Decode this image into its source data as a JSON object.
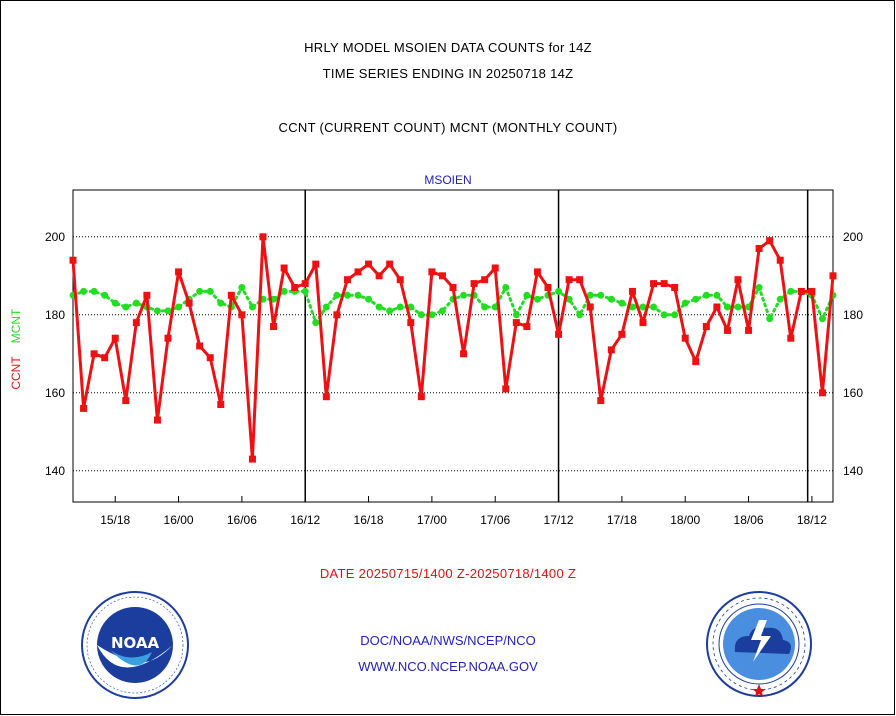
{
  "header": {
    "title_line1": "HRLY MODEL MSOIEN DATA COUNTS for 14Z",
    "title_line2": "TIME SERIES ENDING IN 20250718 14Z",
    "subtitle": "CCNT (CURRENT COUNT) MCNT (MONTHLY COUNT)"
  },
  "footer": {
    "date_range": "DATE 20250715/1400 Z-20250718/1400 Z",
    "link1": "DOC/NOAA/NWS/NCEP/NCO",
    "link2": "WWW.NCO.NCEP.NOAA.GOV"
  },
  "logos": {
    "left": "noaa-logo",
    "right": "nws-logo"
  },
  "colors": {
    "ccnt": "#ee1111",
    "mcnt": "#22dd22",
    "station": "#2222bb"
  },
  "chart_data": {
    "type": "line",
    "title": "MSOIEN",
    "ylabel_ccnt": "CCNT",
    "ylabel_mcnt": "MCNT",
    "ylim": [
      132,
      212
    ],
    "yticks": [
      140,
      160,
      180,
      200
    ],
    "xlim": [
      0,
      90
    ],
    "xticks": [
      {
        "x": 5,
        "label": "15/18"
      },
      {
        "x": 12.5,
        "label": "16/00"
      },
      {
        "x": 20,
        "label": "16/06"
      },
      {
        "x": 27.5,
        "label": "16/12"
      },
      {
        "x": 35,
        "label": "16/18"
      },
      {
        "x": 42.5,
        "label": "17/00"
      },
      {
        "x": 50,
        "label": "17/06"
      },
      {
        "x": 57.5,
        "label": "17/12"
      },
      {
        "x": 65,
        "label": "17/18"
      },
      {
        "x": 72.5,
        "label": "18/00"
      },
      {
        "x": 80,
        "label": "18/06"
      },
      {
        "x": 87.5,
        "label": "18/12"
      }
    ],
    "day_boundaries": [
      27.5,
      57.5,
      87.0
    ],
    "grid": true,
    "series": [
      {
        "name": "CCNT",
        "values": [
          194,
          156,
          170,
          169,
          174,
          158,
          178,
          185,
          153,
          174,
          191,
          183,
          172,
          169,
          157,
          185,
          180,
          143,
          200,
          177,
          192,
          187,
          188,
          193,
          159,
          180,
          189,
          191,
          193,
          190,
          193,
          189,
          178,
          159,
          191,
          190,
          187,
          170,
          188,
          189,
          192,
          161,
          178,
          177,
          191,
          187,
          175,
          189,
          189,
          182,
          158,
          171,
          175,
          186,
          178,
          188,
          188,
          187,
          174,
          168,
          177,
          182,
          176,
          189,
          176,
          197,
          199,
          194,
          174,
          186,
          186,
          160,
          190
        ]
      },
      {
        "name": "MCNT",
        "values": [
          185,
          186,
          186,
          185,
          183,
          182,
          183,
          182,
          181,
          181,
          182,
          184,
          186,
          186,
          183,
          182,
          187,
          182,
          184,
          184,
          186,
          186,
          186,
          178,
          182,
          185,
          185,
          185,
          184,
          182,
          181,
          182,
          182,
          180,
          180,
          181,
          184,
          185,
          185,
          182,
          182,
          187,
          180,
          185,
          184,
          185,
          186,
          184,
          180,
          185,
          185,
          184,
          183,
          182,
          182,
          182,
          180,
          180,
          183,
          184,
          185,
          185,
          182,
          182,
          182,
          187,
          179,
          184,
          186,
          186,
          185,
          179,
          185
        ]
      }
    ]
  }
}
